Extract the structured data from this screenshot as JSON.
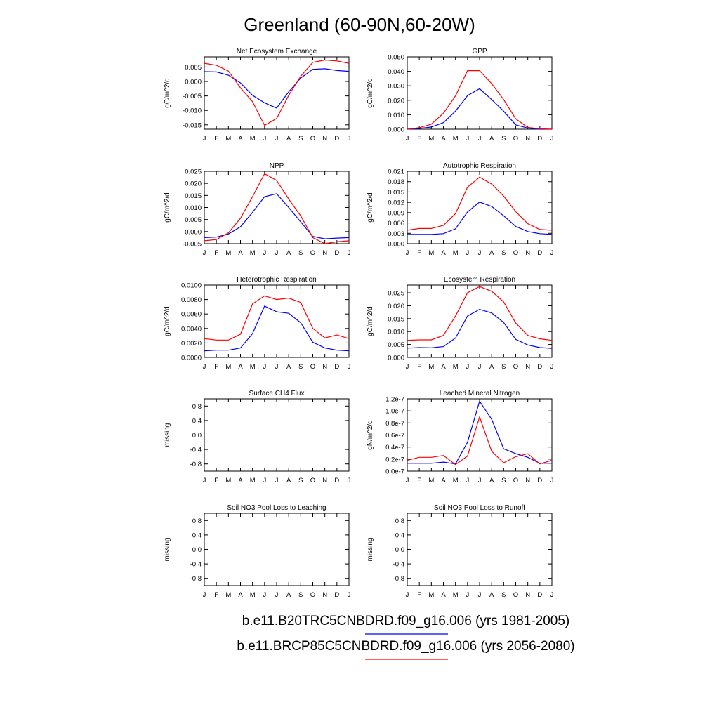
{
  "title": "Greenland (60-90N,60-20W)",
  "month_labels": [
    "J",
    "F",
    "M",
    "A",
    "M",
    "J",
    "J",
    "A",
    "S",
    "O",
    "N",
    "D",
    "J"
  ],
  "series_colors": {
    "blue": "#0000ff",
    "red": "#ff0000"
  },
  "legend": [
    {
      "label": "b.e11.B20TRC5CNBDRD.f09_g16.006 (yrs 1981-2005)",
      "color": "#0000ff"
    },
    {
      "label": "b.e11.BRCP85C5CNBDRD.f09_g16.006 (yrs 2056-2080)",
      "color": "#ff0000"
    }
  ],
  "chart_data": [
    {
      "type": "line",
      "title": "Net Ecosystem Exchange",
      "ylabel": "gC/m^2/d",
      "ylim": [
        -0.0165,
        0.0085
      ],
      "yticks": [
        "0.005",
        "0.000",
        "-0.005",
        "-0.010",
        "-0.015"
      ],
      "ytick_values": [
        0.005,
        0.0,
        -0.005,
        -0.01,
        -0.015
      ],
      "categories": [
        "J",
        "F",
        "M",
        "A",
        "M",
        "J",
        "J",
        "A",
        "S",
        "O",
        "N",
        "D",
        "J"
      ],
      "series": [
        {
          "color": "#0000ff",
          "values": [
            0.0034,
            0.0033,
            0.0022,
            -0.0005,
            -0.0048,
            -0.0074,
            -0.0092,
            -0.0036,
            0.0012,
            0.0042,
            0.0044,
            0.0038,
            0.0035
          ]
        },
        {
          "color": "#ff0000",
          "values": [
            0.0063,
            0.0056,
            0.0036,
            -0.0022,
            -0.007,
            -0.0152,
            -0.0128,
            -0.0048,
            0.0018,
            0.0066,
            0.0074,
            0.0071,
            0.0063
          ]
        }
      ]
    },
    {
      "type": "line",
      "title": "GPP",
      "ylabel": "gC/m^2/d",
      "ylim": [
        0,
        0.05
      ],
      "yticks": [
        "0.050",
        "0.040",
        "0.030",
        "0.020",
        "0.010",
        "0.000"
      ],
      "ytick_values": [
        0.05,
        0.04,
        0.03,
        0.02,
        0.01,
        0.0
      ],
      "categories": [
        "J",
        "F",
        "M",
        "A",
        "M",
        "J",
        "J",
        "A",
        "S",
        "O",
        "N",
        "D",
        "J"
      ],
      "series": [
        {
          "color": "#0000ff",
          "values": [
            0.0,
            0.0005,
            0.0015,
            0.0045,
            0.0125,
            0.0232,
            0.028,
            0.0205,
            0.0125,
            0.003,
            0.0008,
            0.0,
            0.0
          ]
        },
        {
          "color": "#ff0000",
          "values": [
            0.0,
            0.001,
            0.0035,
            0.011,
            0.023,
            0.0405,
            0.0405,
            0.0315,
            0.0205,
            0.0072,
            0.0012,
            0.0003,
            0.0
          ]
        }
      ]
    },
    {
      "type": "line",
      "title": "NPP",
      "ylabel": "gC/m^2/d",
      "ylim": [
        -0.005,
        0.025
      ],
      "yticks": [
        "0.025",
        "0.020",
        "0.015",
        "0.010",
        "0.005",
        "0.000",
        "-0.005"
      ],
      "ytick_values": [
        0.025,
        0.02,
        0.015,
        0.01,
        0.005,
        0.0,
        -0.005
      ],
      "categories": [
        "J",
        "F",
        "M",
        "A",
        "M",
        "J",
        "J",
        "A",
        "S",
        "O",
        "N",
        "D",
        "J"
      ],
      "series": [
        {
          "color": "#0000ff",
          "values": [
            -0.0025,
            -0.0023,
            -0.001,
            0.002,
            0.008,
            0.0145,
            0.0157,
            0.01,
            0.004,
            -0.002,
            -0.003,
            -0.0027,
            -0.0025
          ]
        },
        {
          "color": "#ff0000",
          "values": [
            -0.0038,
            -0.0033,
            -0.0005,
            0.0055,
            0.0145,
            0.024,
            0.0212,
            0.0135,
            0.0065,
            -0.0025,
            -0.005,
            -0.0042,
            -0.0038
          ]
        }
      ]
    },
    {
      "type": "line",
      "title": "Autotrophic Respiration",
      "ylabel": "gC/m^2/d",
      "ylim": [
        0,
        0.021
      ],
      "yticks": [
        "0.021",
        "0.018",
        "0.015",
        "0.012",
        "0.009",
        "0.006",
        "0.003",
        "0.000"
      ],
      "ytick_values": [
        0.021,
        0.018,
        0.015,
        0.012,
        0.009,
        0.006,
        0.003,
        0.0
      ],
      "categories": [
        "J",
        "F",
        "M",
        "A",
        "M",
        "J",
        "J",
        "A",
        "S",
        "O",
        "N",
        "D",
        "J"
      ],
      "series": [
        {
          "color": "#0000ff",
          "values": [
            0.0027,
            0.0027,
            0.0027,
            0.0029,
            0.0043,
            0.0092,
            0.0121,
            0.0108,
            0.0081,
            0.005,
            0.0035,
            0.0029,
            0.0027
          ]
        },
        {
          "color": "#ff0000",
          "values": [
            0.0039,
            0.0044,
            0.0044,
            0.0053,
            0.0087,
            0.0164,
            0.0193,
            0.0173,
            0.0138,
            0.0093,
            0.0058,
            0.0041,
            0.0039
          ]
        }
      ]
    },
    {
      "type": "line",
      "title": "Heterotrophic Respiration",
      "ylabel": "gC/m^2/d",
      "ylim": [
        0,
        0.01
      ],
      "yticks": [
        "0.0100",
        "0.0080",
        "0.0060",
        "0.0040",
        "0.0020",
        "0.0000"
      ],
      "ytick_values": [
        0.01,
        0.008,
        0.006,
        0.004,
        0.002,
        0.0
      ],
      "categories": [
        "J",
        "F",
        "M",
        "A",
        "M",
        "J",
        "J",
        "A",
        "S",
        "O",
        "N",
        "D",
        "J"
      ],
      "series": [
        {
          "color": "#0000ff",
          "values": [
            0.0009,
            0.001,
            0.001,
            0.0013,
            0.0033,
            0.0071,
            0.0063,
            0.0061,
            0.0048,
            0.0021,
            0.0013,
            0.001,
            0.0009
          ]
        },
        {
          "color": "#ff0000",
          "values": [
            0.0026,
            0.0024,
            0.0024,
            0.0032,
            0.0074,
            0.0085,
            0.008,
            0.0082,
            0.0076,
            0.004,
            0.0027,
            0.0031,
            0.0026
          ]
        }
      ]
    },
    {
      "type": "line",
      "title": "Ecosystem Respiration",
      "ylabel": "gC/m^2/d",
      "ylim": [
        0,
        0.028
      ],
      "yticks": [
        "0.025",
        "0.020",
        "0.015",
        "0.010",
        "0.005",
        "0.000"
      ],
      "ytick_values": [
        0.025,
        0.02,
        0.015,
        0.01,
        0.005,
        0.0
      ],
      "categories": [
        "J",
        "F",
        "M",
        "A",
        "M",
        "J",
        "J",
        "A",
        "S",
        "O",
        "N",
        "D",
        "J"
      ],
      "series": [
        {
          "color": "#0000ff",
          "values": [
            0.0036,
            0.0038,
            0.0037,
            0.0042,
            0.0075,
            0.016,
            0.0186,
            0.0172,
            0.0135,
            0.007,
            0.0048,
            0.0038,
            0.0035
          ]
        },
        {
          "color": "#ff0000",
          "values": [
            0.0066,
            0.0068,
            0.0068,
            0.0085,
            0.016,
            0.025,
            0.0274,
            0.0256,
            0.0215,
            0.0133,
            0.0085,
            0.0072,
            0.0066
          ]
        }
      ]
    },
    {
      "type": "line",
      "title": "Surface CH4 Flux",
      "ylabel": "missing",
      "ylim": [
        -1,
        1
      ],
      "yticks": [
        "0.8",
        "0.4",
        "0.0",
        "-0.4",
        "-0.8"
      ],
      "ytick_values": [
        0.8,
        0.4,
        0.0,
        -0.4,
        -0.8
      ],
      "categories": [
        "J",
        "F",
        "M",
        "A",
        "M",
        "J",
        "J",
        "A",
        "S",
        "O",
        "N",
        "D",
        "J"
      ],
      "series": []
    },
    {
      "type": "line",
      "title": "Leached Mineral Nitrogen",
      "ylabel": "gN/m^2/d",
      "ylim": [
        0,
        1.2e-07
      ],
      "yticks": [
        "1.2e-7",
        "1.0e-7",
        "0.8e-7",
        "0.6e-7",
        "0.4e-7",
        "0.2e-7",
        "0.0e-7"
      ],
      "ytick_values": [
        1.2e-07,
        1e-07,
        8e-08,
        6e-08,
        4e-08,
        2e-08,
        0.0
      ],
      "categories": [
        "J",
        "F",
        "M",
        "A",
        "M",
        "J",
        "J",
        "A",
        "S",
        "O",
        "N",
        "D",
        "J"
      ],
      "series": [
        {
          "color": "#0000ff",
          "values": [
            1.3e-08,
            1.3e-08,
            1.3e-08,
            1.5e-08,
            1.2e-08,
            4.8e-08,
            1.16e-07,
            8.6e-08,
            3.7e-08,
            2.9e-08,
            2.3e-08,
            1.3e-08,
            1.3e-08
          ]
        },
        {
          "color": "#ff0000",
          "values": [
            1.8e-08,
            2.3e-08,
            2.3e-08,
            2.6e-08,
            1.1e-08,
            2.5e-08,
            9e-08,
            3.3e-08,
            1.4e-08,
            2.4e-08,
            2.9e-08,
            1.2e-08,
            1.8e-08
          ]
        }
      ]
    },
    {
      "type": "line",
      "title": "Soil NO3 Pool Loss to Leaching",
      "ylabel": "missing",
      "ylim": [
        -1,
        1
      ],
      "yticks": [
        "0.8",
        "0.4",
        "0.0",
        "-0.4",
        "-0.8"
      ],
      "ytick_values": [
        0.8,
        0.4,
        0.0,
        -0.4,
        -0.8
      ],
      "categories": [
        "J",
        "F",
        "M",
        "A",
        "M",
        "J",
        "J",
        "A",
        "S",
        "O",
        "N",
        "D",
        "J"
      ],
      "series": []
    },
    {
      "type": "line",
      "title": "Soil NO3 Pool Loss to Runoff",
      "ylabel": "missing",
      "ylim": [
        -1,
        1
      ],
      "yticks": [
        "0.8",
        "0.4",
        "0.0",
        "-0.4",
        "-0.8"
      ],
      "ytick_values": [
        0.8,
        0.4,
        0.0,
        -0.4,
        -0.8
      ],
      "categories": [
        "J",
        "F",
        "M",
        "A",
        "M",
        "J",
        "J",
        "A",
        "S",
        "O",
        "N",
        "D",
        "J"
      ],
      "series": []
    }
  ]
}
